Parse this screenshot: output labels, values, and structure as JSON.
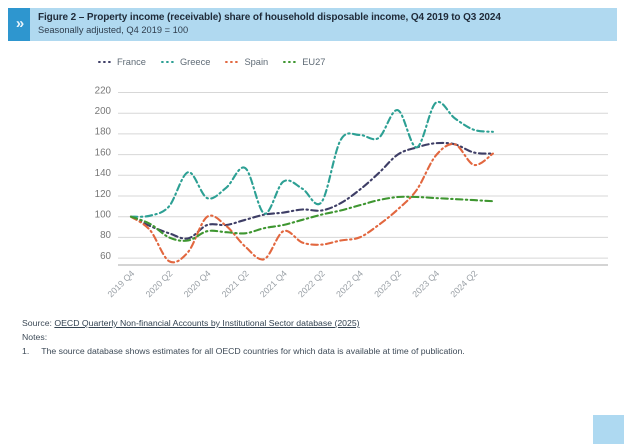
{
  "header": {
    "title": "Figure 2 – Property income (receivable) share of household disposable income, Q4 2019 to Q3 2024",
    "subtitle": "Seasonally adjusted, Q4 2019 = 100",
    "chevron_glyph": "»",
    "band_color": "#b0d9f0",
    "chevron_box_color": "#2e96cf"
  },
  "chart_data": {
    "type": "line",
    "title": "Property income (receivable) share of household disposable income, Q4 2019 to Q3 2024",
    "xlabel": "",
    "ylabel": "",
    "ylim": [
      60,
      220
    ],
    "ytick_step": 20,
    "ytick_labels": [
      "60",
      "80",
      "100",
      "120",
      "140",
      "160",
      "180",
      "200",
      "220"
    ],
    "grid": "horizontal",
    "legend_position": "top",
    "line_style": "dash-dot",
    "categories": [
      "2019 Q4",
      "2020 Q1",
      "2020 Q2",
      "2020 Q3",
      "2020 Q4",
      "2021 Q1",
      "2021 Q2",
      "2021 Q3",
      "2021 Q4",
      "2022 Q1",
      "2022 Q2",
      "2022 Q3",
      "2022 Q4",
      "2023 Q1",
      "2023 Q2",
      "2023 Q3",
      "2023 Q4",
      "2024 Q1",
      "2024 Q2",
      "2024 Q3"
    ],
    "x_tick_labels": [
      "2019 Q4",
      "2020 Q2",
      "2020 Q4",
      "2021 Q2",
      "2021 Q4",
      "2022 Q2",
      "2022 Q4",
      "2023 Q2",
      "2023 Q4",
      "2024 Q2"
    ],
    "series": [
      {
        "name": "France",
        "color": "#3e3e66",
        "values": [
          100,
          91,
          84,
          79,
          92,
          92,
          97,
          102,
          104,
          107,
          106,
          113,
          126,
          142,
          160,
          167,
          171,
          170,
          162,
          161
        ]
      },
      {
        "name": "Greece",
        "color": "#2da094",
        "values": [
          100,
          101,
          110,
          143,
          118,
          128,
          147,
          103,
          134,
          127,
          114,
          174,
          179,
          176,
          203,
          167,
          210,
          195,
          184,
          182
        ]
      },
      {
        "name": "Spain",
        "color": "#e2673f",
        "values": [
          100,
          87,
          57,
          66,
          100,
          91,
          71,
          59,
          86,
          75,
          73,
          77,
          80,
          92,
          107,
          126,
          159,
          170,
          150,
          161
        ]
      },
      {
        "name": "EU27",
        "color": "#3e9630",
        "values": [
          100,
          93,
          80,
          77,
          86,
          85,
          84,
          89,
          92,
          97,
          102,
          106,
          111,
          116,
          119,
          119,
          118,
          117,
          116,
          115
        ]
      }
    ],
    "axis_colors": {
      "gridline": "#d7d7d7",
      "axis_line": "#a8a8a8",
      "ytick_text": "#777777",
      "xtick_text": "#9aa0a6"
    }
  },
  "footer": {
    "source_prefix": "Source:",
    "source_link": "OECD Quarterly Non-financial Accounts by Institutional Sector database (2025)",
    "notes_label": "Notes:",
    "note_1_number": "1.",
    "note_1_text": "The source database shows estimates for all OECD countries for which data is available at time of publication."
  }
}
